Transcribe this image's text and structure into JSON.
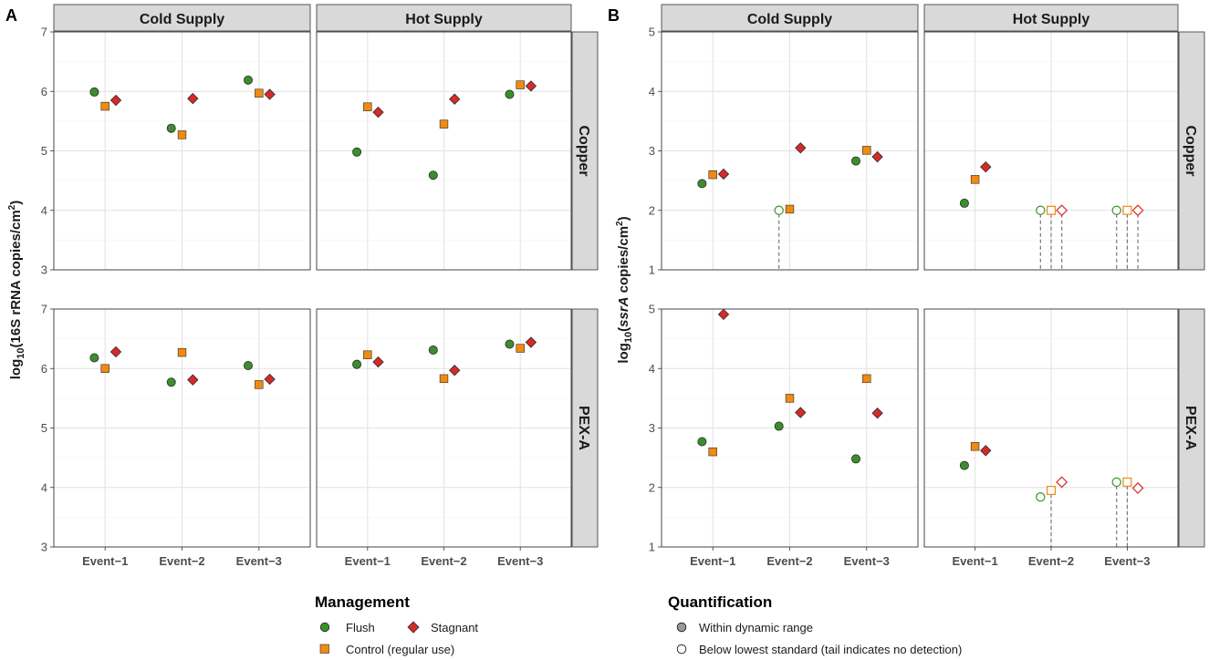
{
  "figure": {
    "panel_tags": [
      "A",
      "B"
    ],
    "legend_management": {
      "title": "Management",
      "items": [
        {
          "label": "Flush",
          "shape": "circle",
          "color": "#3a8f2c"
        },
        {
          "label": "Stagnant",
          "shape": "diamond",
          "color": "#d62a2a"
        },
        {
          "label": "Control (regular use)",
          "shape": "square",
          "color": "#f08a10"
        }
      ]
    },
    "legend_quantification": {
      "title": "Quantification",
      "items": [
        {
          "label": "Within dynamic range",
          "style": "filled",
          "color": "#999999"
        },
        {
          "label": "Below lowest standard (tail indicates no detection)",
          "style": "open",
          "color": "#000000"
        }
      ]
    }
  },
  "chart_data": [
    {
      "id": "A",
      "type": "scatter",
      "ylabel_main": "log",
      "ylabel_sub": "10",
      "ylabel_rest": "(16S rRNA copies/cm",
      "ylabel_sup": "2",
      "ylabel_end": ")",
      "ylim": [
        3,
        7
      ],
      "yticks": [
        "3",
        "4",
        "5",
        "6",
        "7"
      ],
      "columns": [
        "Cold Supply",
        "Hot Supply"
      ],
      "rows": [
        "Copper",
        "PEX-A"
      ],
      "categories": [
        "Event−1",
        "Event−2",
        "Event−3"
      ],
      "panels": [
        {
          "column": "Cold Supply",
          "row": "Copper",
          "flush": [
            5.99,
            5.38,
            6.19
          ],
          "control": [
            5.75,
            5.27,
            5.97
          ],
          "stagnant": [
            5.85,
            5.88,
            5.95
          ]
        },
        {
          "column": "Hot Supply",
          "row": "Copper",
          "flush": [
            4.98,
            4.59,
            5.95
          ],
          "control": [
            5.74,
            5.45,
            6.11
          ],
          "stagnant": [
            5.65,
            5.87,
            6.09
          ]
        },
        {
          "column": "Cold Supply",
          "row": "PEX-A",
          "flush": [
            6.18,
            5.77,
            6.05
          ],
          "control": [
            6.0,
            6.27,
            5.73
          ],
          "stagnant": [
            6.28,
            5.81,
            5.82
          ]
        },
        {
          "column": "Hot Supply",
          "row": "PEX-A",
          "flush": [
            6.07,
            6.31,
            6.41
          ],
          "control": [
            6.23,
            5.83,
            6.34
          ],
          "stagnant": [
            6.11,
            5.97,
            6.44
          ]
        }
      ]
    },
    {
      "id": "B",
      "type": "scatter",
      "ylabel_main": "log",
      "ylabel_sub": "10",
      "ylabel_paren": "(",
      "ylabel_italic": "ssrA",
      "ylabel_rest": " copies/cm",
      "ylabel_sup": "2",
      "ylabel_end": ")",
      "ylim": [
        1,
        5
      ],
      "yticks": [
        "1",
        "2",
        "3",
        "4",
        "5"
      ],
      "columns": [
        "Cold Supply",
        "Hot Supply"
      ],
      "rows": [
        "Copper",
        "PEX-A"
      ],
      "categories": [
        "Event−1",
        "Event−2",
        "Event−3"
      ],
      "open_marker_note": "below lowest standard; dashed tail = no detection",
      "panels": [
        {
          "column": "Cold Supply",
          "row": "Copper",
          "flush": [
            2.45,
            2.0,
            2.83
          ],
          "control": [
            2.6,
            2.02,
            3.01
          ],
          "stagnant": [
            2.61,
            3.05,
            2.9
          ],
          "flush_open": [
            false,
            true,
            false
          ],
          "control_open": [
            false,
            false,
            false
          ],
          "stagnant_open": [
            false,
            false,
            false
          ],
          "flush_tail": [
            false,
            true,
            false
          ],
          "control_tail": [
            false,
            false,
            false
          ],
          "stagnant_tail": [
            false,
            false,
            false
          ]
        },
        {
          "column": "Hot Supply",
          "row": "Copper",
          "flush": [
            2.12,
            2.0,
            2.0
          ],
          "control": [
            2.52,
            2.0,
            2.0
          ],
          "stagnant": [
            2.73,
            2.0,
            2.0
          ],
          "flush_open": [
            false,
            true,
            true
          ],
          "control_open": [
            false,
            true,
            true
          ],
          "stagnant_open": [
            false,
            true,
            true
          ],
          "flush_tail": [
            false,
            true,
            true
          ],
          "control_tail": [
            false,
            true,
            true
          ],
          "stagnant_tail": [
            false,
            true,
            true
          ]
        },
        {
          "column": "Cold Supply",
          "row": "PEX-A",
          "flush": [
            2.77,
            3.03,
            2.48
          ],
          "control": [
            2.6,
            3.5,
            3.83
          ],
          "stagnant": [
            4.91,
            3.26,
            3.25
          ],
          "flush_open": [
            false,
            false,
            false
          ],
          "control_open": [
            false,
            false,
            false
          ],
          "stagnant_open": [
            false,
            false,
            false
          ],
          "flush_tail": [
            false,
            false,
            false
          ],
          "control_tail": [
            false,
            false,
            false
          ],
          "stagnant_tail": [
            false,
            false,
            false
          ]
        },
        {
          "column": "Hot Supply",
          "row": "PEX-A",
          "flush": [
            2.37,
            1.84,
            2.09
          ],
          "control": [
            2.69,
            1.95,
            2.09
          ],
          "stagnant": [
            2.62,
            2.09,
            1.99
          ],
          "flush_open": [
            false,
            true,
            true
          ],
          "control_open": [
            false,
            true,
            true
          ],
          "stagnant_open": [
            false,
            true,
            true
          ],
          "flush_tail": [
            false,
            false,
            true
          ],
          "control_tail": [
            false,
            true,
            true
          ],
          "stagnant_tail": [
            false,
            false,
            false
          ]
        }
      ]
    }
  ]
}
